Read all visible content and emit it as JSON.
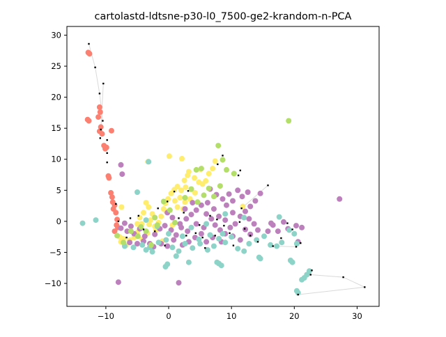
{
  "chart_data": {
    "type": "scatter",
    "title": "cartolastd-ldtsne-p30-l0_7500-ge2-krandom-n-PCA",
    "xlabel": "",
    "ylabel": "",
    "xlim": [
      -16.2,
      33.5
    ],
    "ylim": [
      -13.7,
      31.4
    ],
    "xticks": [
      -10,
      0,
      10,
      20,
      30
    ],
    "xtick_labels": [
      "−10",
      "0",
      "10",
      "20",
      "30"
    ],
    "yticks": [
      -10,
      -5,
      0,
      5,
      10,
      15,
      20,
      25,
      30
    ],
    "yticks_labels": [
      "−10",
      "−5",
      "0",
      "5",
      "10",
      "15",
      "20",
      "25",
      "30"
    ],
    "grid": false,
    "legend": "none",
    "colors": {
      "salmon": "#fb8072",
      "yellow": "#ffed6f",
      "purple": "#bc80bd",
      "teal": "#8dd3c7",
      "green": "#b3de69",
      "marker": "#000000",
      "trail": "#d9d9d9"
    },
    "series": [
      {
        "color": "salmon",
        "points": [
          [
            -12.8,
            27.2
          ],
          [
            -12.6,
            27.0
          ],
          [
            -12.9,
            16.4
          ],
          [
            -12.7,
            16.2
          ],
          [
            -11,
            18.4
          ],
          [
            -10.9,
            17.6
          ],
          [
            -11.2,
            16.8
          ],
          [
            -10.8,
            15.2
          ],
          [
            -11,
            14.5
          ],
          [
            -10.6,
            14.1
          ],
          [
            -10.3,
            12.2
          ],
          [
            -10.1,
            11.7
          ],
          [
            -9.9,
            11.9
          ],
          [
            -9.1,
            14.6
          ],
          [
            -9.6,
            7.3
          ],
          [
            -9.5,
            7.0
          ],
          [
            -9.2,
            4.6
          ],
          [
            -9,
            3.9
          ],
          [
            -8.9,
            3.1
          ],
          [
            -8.6,
            2.6
          ],
          [
            -8.8,
            2.0
          ],
          [
            -8.4,
            1.4
          ],
          [
            -8.2,
            0.3
          ],
          [
            -8.3,
            -0.6
          ],
          [
            -8.1,
            -1.0
          ],
          [
            -8.6,
            -1.6
          ]
        ]
      },
      {
        "color": "yellow",
        "points": [
          [
            -7.5,
            2.3
          ],
          [
            -7.8,
            -2.5
          ],
          [
            -7.2,
            -2.8
          ],
          [
            -7.6,
            -3.3
          ],
          [
            -6.8,
            -3.9
          ],
          [
            -6.2,
            -3.0
          ],
          [
            -5.5,
            -2.6
          ],
          [
            -5.0,
            -1.8
          ],
          [
            -4.3,
            -0.4
          ],
          [
            -4.6,
            0.6
          ],
          [
            -4.0,
            1.4
          ],
          [
            -3.6,
            3.0
          ],
          [
            -3.2,
            2.3
          ],
          [
            -2.6,
            1.2
          ],
          [
            -2.9,
            0.2
          ],
          [
            -2.2,
            -0.8
          ],
          [
            -1.6,
            -0.2
          ],
          [
            -1.2,
            0.8
          ],
          [
            -0.8,
            2.0
          ],
          [
            -0.5,
            2.9
          ],
          [
            -0.1,
            3.6
          ],
          [
            0.4,
            4.5
          ],
          [
            0.9,
            5.1
          ],
          [
            1.4,
            5.6
          ],
          [
            2.0,
            5.0
          ],
          [
            2.5,
            6.6
          ],
          [
            3.0,
            7.4
          ],
          [
            3.2,
            8.0
          ],
          [
            2.7,
            5.5
          ],
          [
            3.6,
            5.1
          ],
          [
            4.2,
            4.6
          ],
          [
            4.8,
            6.3
          ],
          [
            5.4,
            6.0
          ],
          [
            5.9,
            6.5
          ],
          [
            6.4,
            7.7
          ],
          [
            7.0,
            8.5
          ],
          [
            7.4,
            9.7
          ],
          [
            5.1,
            8.4
          ],
          [
            4.1,
            7.0
          ],
          [
            0.1,
            10.5
          ],
          [
            2.1,
            10.1
          ],
          [
            -3.3,
            9.6
          ],
          [
            1.0,
            3.3
          ],
          [
            1.4,
            2.3
          ],
          [
            2.3,
            2.0
          ],
          [
            -0.4,
            1.6
          ],
          [
            -2.0,
            -1.4
          ],
          [
            -3.4,
            -1.9
          ],
          [
            -4.2,
            -2.9
          ],
          [
            -5.0,
            -0.4
          ],
          [
            -3.1,
            -0.5
          ],
          [
            1.8,
            3.8
          ],
          [
            2.6,
            3.1
          ],
          [
            3.4,
            3.6
          ],
          [
            0.6,
            -0.6
          ],
          [
            -1.0,
            -3.2
          ],
          [
            11.8,
            2.4
          ]
        ]
      },
      {
        "color": "purple",
        "points": [
          [
            -7.6,
            -1.1
          ],
          [
            -7.0,
            -0.3
          ],
          [
            -6.6,
            -1.6
          ],
          [
            -6.0,
            -0.8
          ],
          [
            -5.5,
            -2.0
          ],
          [
            -4.6,
            -1.2
          ],
          [
            -3.8,
            -2.4
          ],
          [
            -3.0,
            -3.6
          ],
          [
            -2.2,
            -2.1
          ],
          [
            -1.4,
            -1.2
          ],
          [
            -0.6,
            -0.7
          ],
          [
            0.4,
            -1.4
          ],
          [
            1.2,
            -2.2
          ],
          [
            2.0,
            -1.0
          ],
          [
            2.8,
            0.4
          ],
          [
            3.6,
            1.1
          ],
          [
            4.4,
            1.8
          ],
          [
            5.2,
            2.6
          ],
          [
            6.0,
            1.2
          ],
          [
            6.8,
            0.4
          ],
          [
            7.4,
            -0.6
          ],
          [
            8.2,
            -1.4
          ],
          [
            9.0,
            -2.0
          ],
          [
            9.8,
            -1.0
          ],
          [
            10.6,
            -0.4
          ],
          [
            11.4,
            0.8
          ],
          [
            12.2,
            1.6
          ],
          [
            13.0,
            2.4
          ],
          [
            13.8,
            3.3
          ],
          [
            14.6,
            4.5
          ],
          [
            11.0,
            5.0
          ],
          [
            9.6,
            4.4
          ],
          [
            8.6,
            3.6
          ],
          [
            7.6,
            4.3
          ],
          [
            6.6,
            5.2
          ],
          [
            9.2,
            2.6
          ],
          [
            10.2,
            3.3
          ],
          [
            11.7,
            4.0
          ],
          [
            12.6,
            4.7
          ],
          [
            -7.6,
            9.1
          ],
          [
            -7.4,
            7.6
          ],
          [
            -8.0,
            -9.8
          ],
          [
            1.6,
            -9.9
          ],
          [
            27.2,
            3.6
          ],
          [
            16.3,
            -0.3
          ],
          [
            16.6,
            -0.6
          ],
          [
            17.4,
            -1.6
          ],
          [
            18.3,
            -0.1
          ],
          [
            19.0,
            -1.2
          ],
          [
            20.3,
            -0.7
          ],
          [
            20.6,
            -3.3
          ],
          [
            21.2,
            -1.0
          ],
          [
            15.8,
            -1.6
          ],
          [
            14.2,
            -1.4
          ],
          [
            13.0,
            -2.1
          ],
          [
            12.2,
            -1.3
          ],
          [
            11.4,
            -3.0
          ],
          [
            10.2,
            -2.4
          ],
          [
            8.4,
            -3.3
          ],
          [
            7.0,
            -2.6
          ],
          [
            6.0,
            -3.3
          ],
          [
            5.2,
            -2.0
          ],
          [
            4.2,
            -2.6
          ],
          [
            3.2,
            -3.3
          ],
          [
            2.2,
            -3.8
          ],
          [
            0.8,
            -3.0
          ],
          [
            -0.2,
            -4.0
          ],
          [
            -1.2,
            -3.6
          ],
          [
            -2.4,
            -4.1
          ],
          [
            -4.0,
            -3.2
          ],
          [
            -5.0,
            -3.6
          ],
          [
            -6.2,
            -3.4
          ],
          [
            5.6,
            -1.0
          ],
          [
            4.4,
            -0.4
          ],
          [
            3.0,
            -1.6
          ],
          [
            1.8,
            -0.4
          ],
          [
            0.6,
            0.6
          ],
          [
            -0.2,
            1.4
          ],
          [
            2.6,
            2.0
          ],
          [
            3.8,
            3.0
          ],
          [
            6.2,
            3.0
          ],
          [
            7.2,
            2.0
          ],
          [
            8.0,
            0.8
          ],
          [
            9.0,
            0.2
          ],
          [
            10.2,
            1.4
          ],
          [
            12.8,
            0.4
          ],
          [
            13.6,
            -0.4
          ]
        ]
      },
      {
        "color": "teal",
        "points": [
          [
            -13.7,
            -0.3
          ],
          [
            -11.6,
            0.2
          ],
          [
            -5.0,
            4.7
          ],
          [
            -3.2,
            9.6
          ],
          [
            -7.0,
            -4.0
          ],
          [
            -5.6,
            -4.2
          ],
          [
            -4.2,
            -3.8
          ],
          [
            -3.0,
            -4.2
          ],
          [
            -1.6,
            -3.4
          ],
          [
            -0.4,
            -3.0
          ],
          [
            0.6,
            -4.2
          ],
          [
            1.6,
            -4.8
          ],
          [
            2.6,
            -3.6
          ],
          [
            3.8,
            -4.3
          ],
          [
            5.0,
            -3.6
          ],
          [
            6.2,
            -4.6
          ],
          [
            7.2,
            -4.0
          ],
          [
            8.0,
            -2.8
          ],
          [
            9.0,
            -3.4
          ],
          [
            10.0,
            -2.5
          ],
          [
            11.0,
            -4.4
          ],
          [
            12.0,
            -4.8
          ],
          [
            12.8,
            -3.6
          ],
          [
            14.0,
            -3.0
          ],
          [
            15.2,
            -2.4
          ],
          [
            16.2,
            -3.8
          ],
          [
            17.2,
            -4.0
          ],
          [
            18.0,
            -3.4
          ],
          [
            19.2,
            -1.4
          ],
          [
            20.0,
            -2.0
          ],
          [
            20.4,
            -3.6
          ],
          [
            19.4,
            -6.3
          ],
          [
            19.7,
            -6.6
          ],
          [
            14.4,
            -5.8
          ],
          [
            14.6,
            -6.0
          ],
          [
            8.0,
            -6.8
          ],
          [
            8.4,
            -7.1
          ],
          [
            7.7,
            -6.6
          ],
          [
            3.2,
            -6.6
          ],
          [
            -0.5,
            -7.3
          ],
          [
            -0.2,
            -6.9
          ],
          [
            1.2,
            -5.6
          ],
          [
            -2.6,
            -4.9
          ],
          [
            -3.6,
            -4.6
          ],
          [
            20.4,
            -11.2
          ],
          [
            20.6,
            -11.5
          ],
          [
            21.2,
            -9.4
          ],
          [
            21.6,
            -9.1
          ],
          [
            22.0,
            -8.6
          ],
          [
            22.4,
            -8.0
          ],
          [
            17.6,
            0.7
          ],
          [
            12.0,
            0.6
          ],
          [
            9.0,
            1.2
          ],
          [
            6.0,
            -0.4
          ],
          [
            3.6,
            -1.0
          ],
          [
            2.2,
            -2.4
          ],
          [
            0.0,
            -2.0
          ],
          [
            -1.8,
            -0.8
          ],
          [
            -3.6,
            0.2
          ],
          [
            4.8,
            -2.9
          ],
          [
            6.6,
            -2.2
          ],
          [
            8.6,
            -2.0
          ]
        ]
      },
      {
        "color": "green",
        "points": [
          [
            -8.2,
            -2.3
          ],
          [
            -7.2,
            -3.4
          ],
          [
            -6.0,
            -1.6
          ],
          [
            -4.4,
            -0.9
          ],
          [
            -3.6,
            -1.6
          ],
          [
            -2.2,
            0.6
          ],
          [
            -1.8,
            -0.6
          ],
          [
            -0.8,
            3.2
          ],
          [
            0.2,
            1.8
          ],
          [
            1.0,
            -0.2
          ],
          [
            2.6,
            3.8
          ],
          [
            3.6,
            5.2
          ],
          [
            4.4,
            8.3
          ],
          [
            5.2,
            8.5
          ],
          [
            6.4,
            5.3
          ],
          [
            7.2,
            4.0
          ],
          [
            8.2,
            5.7
          ],
          [
            9.2,
            8.3
          ],
          [
            10.4,
            7.7
          ],
          [
            7.9,
            12.2
          ],
          [
            8.6,
            9.9
          ],
          [
            19.1,
            16.2
          ],
          [
            5.6,
            4.2
          ],
          [
            4.6,
            3.1
          ],
          [
            -2.8,
            -3.8
          ],
          [
            -4.9,
            -2.4
          ]
        ]
      }
    ],
    "black_markers": [
      [
        -12.7,
        28.6
      ],
      [
        -11.7,
        24.8
      ],
      [
        -11.0,
        20.6
      ],
      [
        -10.4,
        22.2
      ],
      [
        -10.5,
        16.2
      ],
      [
        -10.8,
        14.8
      ],
      [
        -10.9,
        13.4
      ],
      [
        -9.8,
        11.0
      ],
      [
        -9.8,
        13.1
      ],
      [
        -9.8,
        9.5
      ],
      [
        -8.4,
        2.8
      ],
      [
        -8.0,
        0.0
      ],
      [
        -6.7,
        -2.6
      ],
      [
        -6.1,
        0.5
      ],
      [
        -4.8,
        0.9
      ],
      [
        -4.0,
        -1.3
      ],
      [
        -2.2,
        -1.6
      ],
      [
        -1.7,
        2.1
      ],
      [
        -0.2,
        3.2
      ],
      [
        0.9,
        4.8
      ],
      [
        1.6,
        0.5
      ],
      [
        2.4,
        1.4
      ],
      [
        3.1,
        4.9
      ],
      [
        4.3,
        -1.9
      ],
      [
        4.9,
        -0.6
      ],
      [
        5.4,
        -2.6
      ],
      [
        5.8,
        -4.3
      ],
      [
        6.6,
        0.9
      ],
      [
        7.4,
        -2.3
      ],
      [
        7.7,
        0.3
      ],
      [
        8.8,
        -0.7
      ],
      [
        9.7,
        -1.9
      ],
      [
        10.3,
        -3.9
      ],
      [
        11.1,
        7.4
      ],
      [
        11.6,
        2.1
      ],
      [
        11.3,
        -0.1
      ],
      [
        12.1,
        -1.2
      ],
      [
        13.0,
        -2.3
      ],
      [
        14.2,
        -3.3
      ],
      [
        15.8,
        5.8
      ],
      [
        16.6,
        -4.0
      ],
      [
        17.9,
        -2.7
      ],
      [
        18.9,
        -0.3
      ],
      [
        19.7,
        -1.3
      ],
      [
        20.3,
        -4.1
      ],
      [
        21.0,
        -3.5
      ],
      [
        22.6,
        -8.6
      ],
      [
        22.8,
        -7.9
      ],
      [
        27.8,
        -9.0
      ],
      [
        31.2,
        -10.6
      ],
      [
        20.6,
        -11.8
      ],
      [
        -0.6,
        -3.9
      ],
      [
        2.8,
        -2.3
      ],
      [
        8.6,
        10.6
      ],
      [
        11.4,
        8.2
      ],
      [
        7.8,
        9.2
      ]
    ],
    "trails": [
      [
        [
          -12.7,
          28.6
        ],
        [
          -11.7,
          24.8
        ],
        [
          -11.0,
          20.6
        ],
        [
          -10.5,
          16.2
        ]
      ],
      [
        [
          -10.4,
          22.2
        ],
        [
          -10.8,
          14.8
        ]
      ],
      [
        [
          22.6,
          -8.6
        ],
        [
          27.8,
          -9.0
        ],
        [
          31.2,
          -10.6
        ],
        [
          20.6,
          -11.8
        ]
      ],
      [
        [
          15.8,
          5.8
        ],
        [
          11.6,
          2.1
        ]
      ],
      [
        [
          16.6,
          -4.0
        ],
        [
          20.3,
          -4.1
        ]
      ]
    ]
  }
}
